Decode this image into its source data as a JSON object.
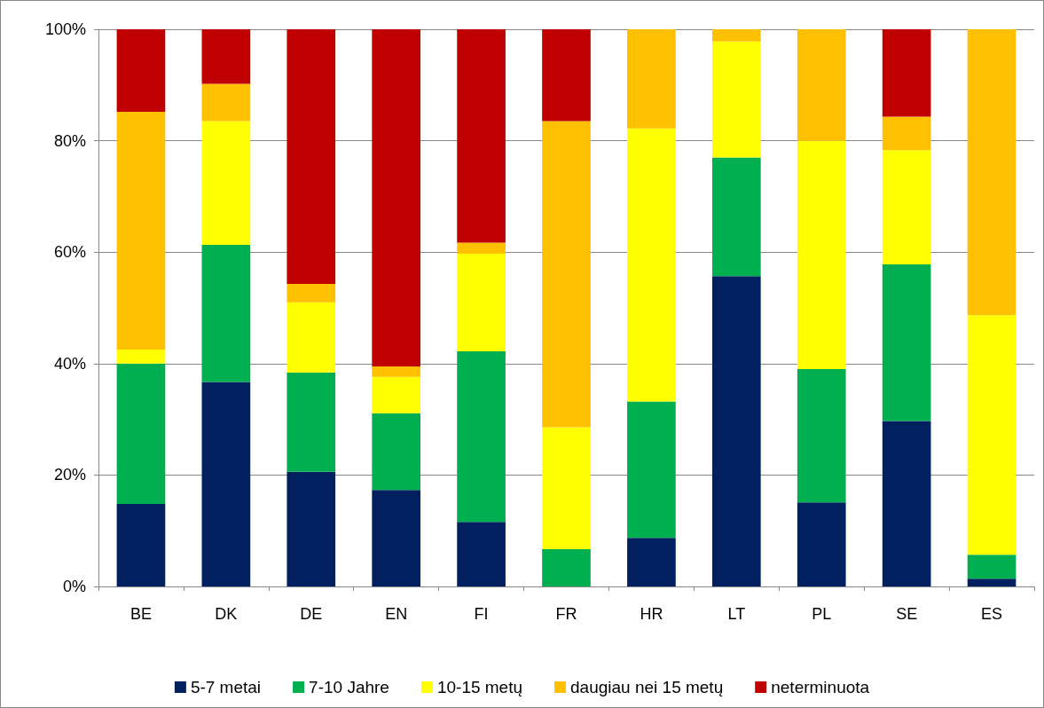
{
  "chart_data": {
    "type": "bar",
    "stacked": true,
    "categories": [
      "BE",
      "DK",
      "DE",
      "EN",
      "FI",
      "FR",
      "HR",
      "LT",
      "PL",
      "SE",
      "ES"
    ],
    "series": [
      {
        "name": "5-7 metai",
        "color": "#002060",
        "values": [
          14.8,
          36.7,
          20.6,
          17.3,
          11.6,
          0,
          8.7,
          55.7,
          15.1,
          29.7,
          1.4
        ]
      },
      {
        "name": "7-10 Jahre",
        "color": "#00b050",
        "values": [
          25.2,
          24.6,
          17.8,
          13.8,
          30.6,
          6.7,
          24.5,
          21.3,
          23.9,
          28.1,
          4.3
        ]
      },
      {
        "name": "10-15 metų",
        "color": "#ffff00",
        "values": [
          2.5,
          22.2,
          12.6,
          6.5,
          17.5,
          21.9,
          49.0,
          20.8,
          41.0,
          20.5,
          43.0
        ]
      },
      {
        "name": "daugiau nei 15 metų",
        "color": "#ffc000",
        "values": [
          42.7,
          6.7,
          3.3,
          1.9,
          2.0,
          54.9,
          17.8,
          2.2,
          20.0,
          6.0,
          51.3
        ]
      },
      {
        "name": "neterminuota",
        "color": "#c00000",
        "values": [
          14.8,
          9.8,
          45.7,
          60.5,
          38.3,
          16.5,
          0,
          0,
          0,
          15.7,
          0
        ]
      }
    ],
    "ylim": [
      0,
      100
    ],
    "yticks": [
      {
        "value": 0,
        "label": "0%"
      },
      {
        "value": 20,
        "label": "20%"
      },
      {
        "value": 40,
        "label": "40%"
      },
      {
        "value": 60,
        "label": "60%"
      },
      {
        "value": 80,
        "label": "80%"
      },
      {
        "value": 100,
        "label": "100%"
      }
    ],
    "grid": "y",
    "legend": "bottom"
  }
}
